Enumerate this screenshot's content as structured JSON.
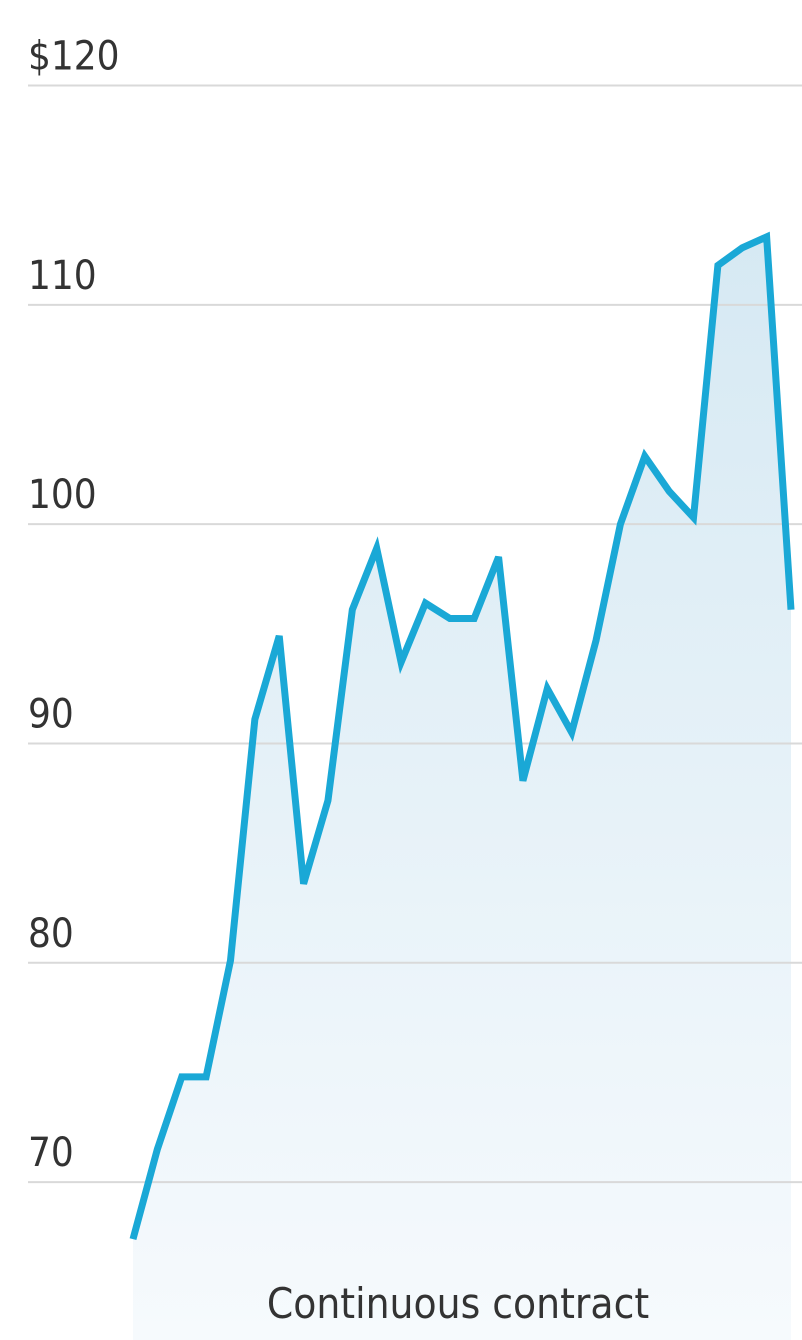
{
  "chart_data": {
    "type": "line",
    "annotation": "Continuous contract",
    "categories": [
      null,
      null,
      null,
      null,
      null,
      null,
      null,
      null,
      null,
      null,
      null,
      null,
      null,
      null,
      null,
      null,
      null,
      null,
      null,
      null,
      null,
      null,
      null,
      null,
      null,
      null,
      null,
      null
    ],
    "values": [
      67.4,
      71.5,
      74.8,
      74.8,
      80.1,
      91.1,
      94.9,
      83.6,
      87.4,
      96.1,
      98.9,
      93.7,
      96.4,
      95.7,
      95.7,
      98.5,
      88.3,
      92.5,
      90.5,
      94.7,
      100.0,
      103.1,
      101.5,
      100.3,
      111.8,
      112.6,
      113.1,
      96.1
    ],
    "color": "#1aa8d6",
    "area": true,
    "ylim": [
      62.8,
      123.9
    ],
    "yticks": [
      {
        "value": 120,
        "label": "$120"
      },
      110,
      100,
      90,
      80,
      70
    ],
    "grid": true
  }
}
